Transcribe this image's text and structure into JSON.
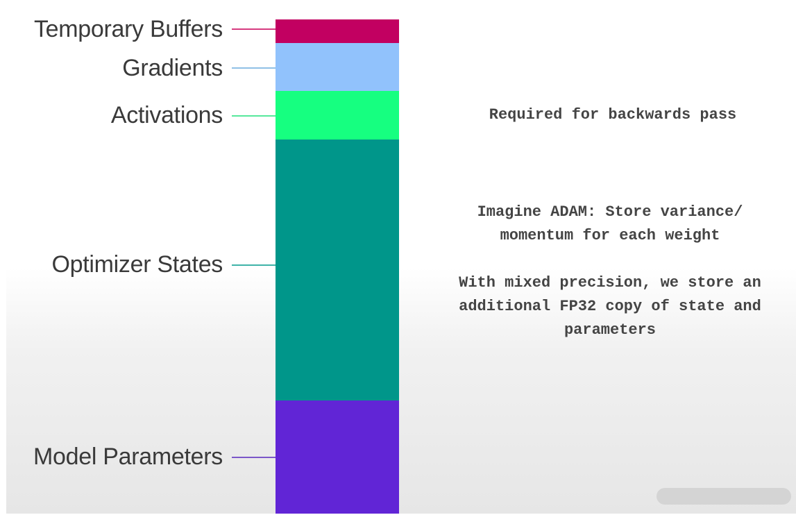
{
  "layers": [
    {
      "key": "temporary_buffers",
      "label": "Temporary Buffers",
      "color": "#c20061",
      "line_color": "#d63a7f"
    },
    {
      "key": "gradients",
      "label": "Gradients",
      "color": "#91c2fc",
      "line_color": "#8fc0e6"
    },
    {
      "key": "activations",
      "label": "Activations",
      "color": "#16ff80",
      "line_color": "#56e89c"
    },
    {
      "key": "optimizer_states",
      "label": "Optimizer States",
      "color": "#00968a",
      "line_color": "#3fb3a8"
    },
    {
      "key": "model_parameters",
      "label": "Model Parameters",
      "color": "#6125d6",
      "line_color": "#7b57c9"
    }
  ],
  "notes": {
    "activations": "Required for backwards pass",
    "optimizer_adam_line1": "Imagine ADAM: Store variance/",
    "optimizer_adam_line2": "momentum for each weight",
    "mixed_precision_line1": "With mixed precision, we store an",
    "mixed_precision_line2": "additional FP32 copy of state and",
    "mixed_precision_line3": "parameters"
  },
  "text_color": "#3a3a3a"
}
